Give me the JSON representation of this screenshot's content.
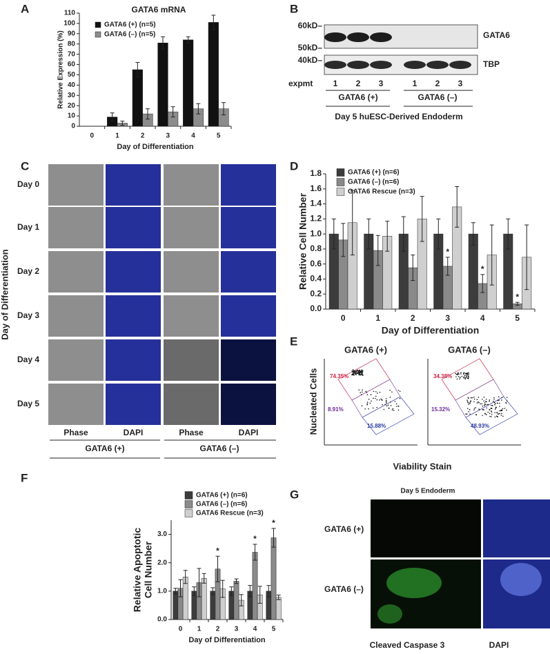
{
  "panel_labels": [
    "A",
    "B",
    "C",
    "D",
    "E",
    "F",
    "G"
  ],
  "chart_data": [
    {
      "type": "bar",
      "title": "GATA6 mRNA",
      "x_label": "Day of Differentiation",
      "y_label": "Relative Expression (%)",
      "categories": [
        "0",
        "1",
        "2",
        "3",
        "4",
        "5"
      ],
      "ylim": [
        0,
        110
      ],
      "yticks": [
        0,
        10,
        20,
        30,
        40,
        50,
        60,
        70,
        80,
        90,
        100,
        110
      ],
      "series": [
        {
          "name": "GATA6 (+) (n=5)",
          "color": "#111111",
          "values": [
            0,
            9,
            55,
            81,
            84,
            101
          ],
          "errors": [
            0,
            4,
            7,
            6,
            3,
            7
          ]
        },
        {
          "name": "GATA6 (–) (n=5)",
          "color": "#8c8c8c",
          "values": [
            0,
            3,
            12,
            14,
            17,
            17
          ],
          "errors": [
            0,
            2,
            5,
            5,
            5,
            6
          ]
        }
      ]
    },
    {
      "type": "bar",
      "x_label": "Day of Differentiation",
      "y_label": "Relative Cell Number",
      "categories": [
        "0",
        "1",
        "2",
        "3",
        "4",
        "5"
      ],
      "ylim": [
        0,
        1.8
      ],
      "yticks": [
        {
          "value": 0,
          "label": "0.0"
        },
        0.2,
        0.4,
        0.6,
        0.8,
        {
          "value": 1,
          "label": "1.0"
        },
        1.2,
        1.4,
        1.6,
        1.8
      ],
      "series": [
        {
          "name": "GATA6 (+) (n=6)",
          "color": "#3c3c3c",
          "values": [
            1,
            1,
            1,
            1,
            1,
            1
          ],
          "errors": [
            0.2,
            0.2,
            0.23,
            0.2,
            0.15,
            0.2
          ]
        },
        {
          "name": "GATA6 (–) (n=6)",
          "color": "#8a8a8a",
          "values": [
            0.92,
            0.78,
            0.55,
            0.57,
            0.34,
            0.07
          ],
          "errors": [
            0.22,
            0.2,
            0.17,
            0.12,
            0.12,
            0.02
          ],
          "annotations": [
            null,
            null,
            null,
            "*",
            "*",
            "*"
          ]
        },
        {
          "name": "GATA6 Rescue (n=3)",
          "color": "#cfcfcf",
          "values": [
            1.15,
            0.97,
            1.2,
            1.36,
            0.72,
            0.69
          ],
          "errors": [
            0.43,
            0.2,
            0.3,
            0.27,
            0.4,
            0.43
          ]
        }
      ]
    },
    {
      "type": "bar",
      "x_label": "Day of Differentiation",
      "y_label": [
        "Relative Apoptotic",
        "Cell Number"
      ],
      "categories": [
        "0",
        "1",
        "2",
        "3",
        "4",
        "5"
      ],
      "ylim": [
        0,
        3.5
      ],
      "yticks": [
        {
          "value": 0,
          "label": "0.0"
        },
        {
          "value": 1,
          "label": "1.0"
        },
        {
          "value": 2,
          "label": "2.0"
        },
        {
          "value": 3,
          "label": "3.0"
        }
      ],
      "series": [
        {
          "name": "GATA6 (+) (n=6)",
          "color": "#3c3c3c",
          "values": [
            1,
            1,
            1,
            1,
            1,
            1
          ],
          "errors": [
            0.1,
            0.15,
            0.12,
            0.15,
            0.2,
            0.2
          ]
        },
        {
          "name": "GATA6 (–) (n=6)",
          "color": "#8a8a8a",
          "values": [
            1.1,
            1.3,
            1.78,
            1.35,
            2.37,
            2.88
          ],
          "errors": [
            0.3,
            0.5,
            0.45,
            0.08,
            0.28,
            0.33
          ],
          "annotations": [
            null,
            null,
            "*",
            null,
            "*",
            "*"
          ]
        },
        {
          "name": "GATA6 Rescue (n=3)",
          "color": "#cfcfcf",
          "values": [
            1.5,
            1.45,
            1.08,
            0.68,
            0.87,
            0.78
          ],
          "errors": [
            0.23,
            0.17,
            0.3,
            0.2,
            0.3,
            0.08
          ]
        }
      ]
    }
  ],
  "blot": {
    "markers": [
      "60kD–",
      "50kD–",
      "40kD–"
    ],
    "proteins": [
      "GATA6",
      "TBP"
    ],
    "lane_title": "expmt",
    "lanes": [
      "1",
      "2",
      "3",
      "1",
      "2",
      "3"
    ],
    "groups": [
      "GATA6 (+)",
      "GATA6 (–)"
    ],
    "caption": "Day 5 huESC-Derived Endoderm"
  },
  "micrographs": {
    "y_label": "Day of Differentiation",
    "rows": [
      "Day 0",
      "Day 1",
      "Day 2",
      "Day 3",
      "Day 4",
      "Day 5"
    ],
    "columns": [
      "Phase",
      "DAPI",
      "Phase",
      "DAPI"
    ],
    "groups": [
      "GATA6 (+)",
      "GATA6 (–)"
    ]
  },
  "flow": {
    "y_label": "Nucleated Cells",
    "x_label": "Viability Stain",
    "plots": [
      {
        "title": "GATA6 (+)",
        "gates": [
          "74.35%",
          "8.91%",
          "15.88%"
        ]
      },
      {
        "title": "GATA6 (–)",
        "gates": [
          "34.38%",
          "15.32%",
          "48.93%"
        ]
      }
    ]
  },
  "caspase": {
    "title": "Day 5 Endoderm",
    "rows": [
      "GATA6 (+)",
      "GATA6 (–)"
    ],
    "columns": [
      "Cleaved Caspase 3",
      "DAPI"
    ]
  }
}
